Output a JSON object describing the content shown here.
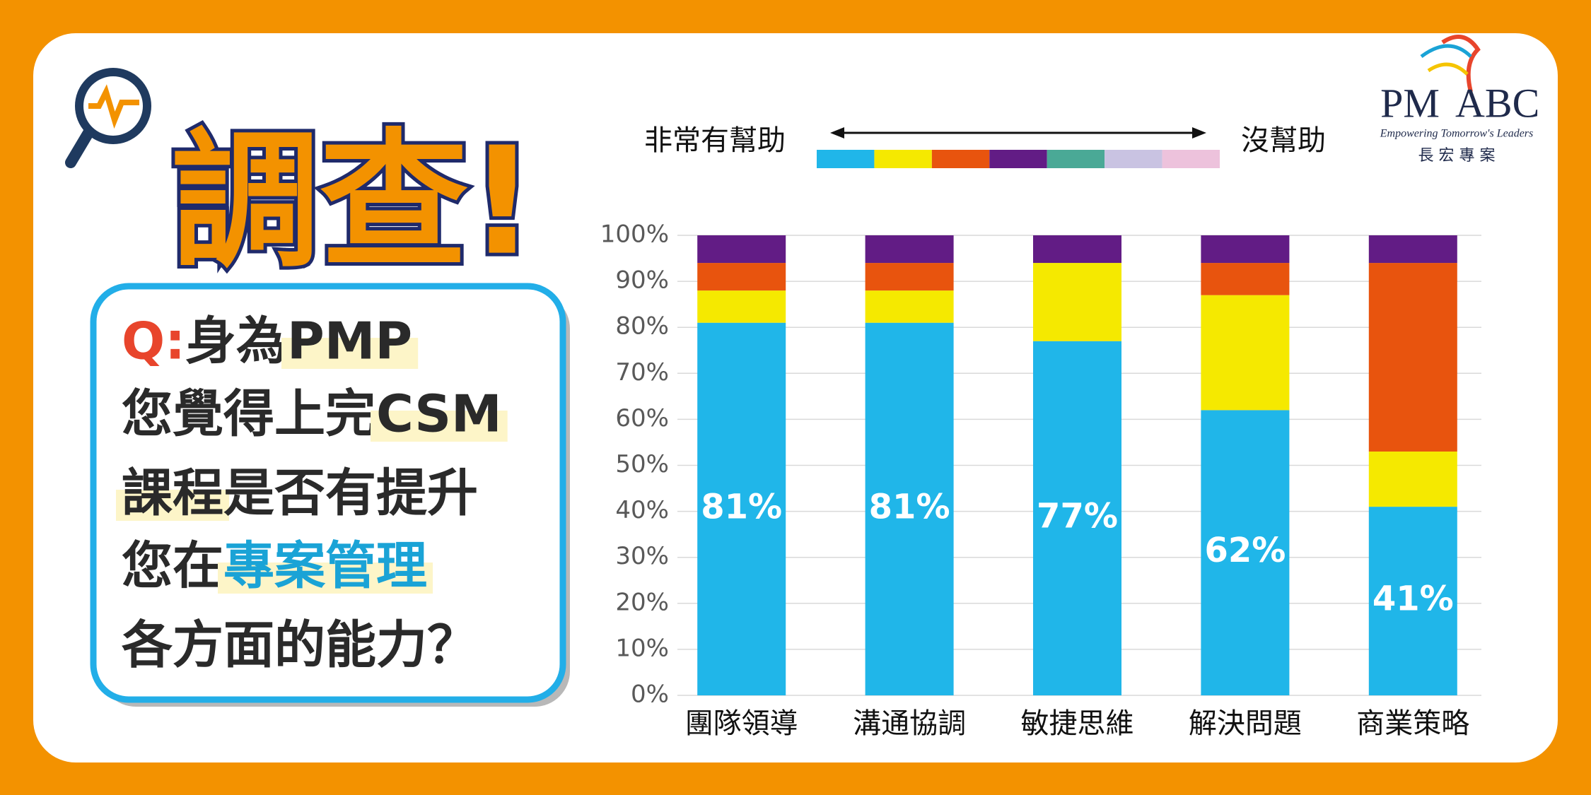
{
  "poster": {
    "title": "調查!",
    "question": [
      [
        {
          "text": "Q:",
          "color": "#e8452c"
        },
        {
          "text": "身為"
        },
        {
          "text": "PMP",
          "highlight": true
        }
      ],
      [
        {
          "text": "您覺得上完"
        },
        {
          "text": "CSM",
          "highlight": true
        }
      ],
      [
        {
          "text": "課程",
          "highlight": true
        },
        {
          "text": "是否有提升"
        }
      ],
      [
        {
          "text": "您在"
        },
        {
          "text": "專案管理",
          "color": "#1aa3d6",
          "highlight": true
        }
      ],
      [
        {
          "text": "各方面的能力？"
        }
      ]
    ],
    "logo": {
      "mark_left": "PM",
      "mark_right": "ABC",
      "tagline": "Empowering Tomorrow's Leaders",
      "name": "長 宏 專 案"
    }
  },
  "chart_data": {
    "type": "stacked_bar",
    "legend_labels": [
      "非常有幫助",
      "沒幫助"
    ],
    "categories": [
      "團隊領導",
      "溝通協調",
      "敏捷思維",
      "解決問題",
      "商業策略"
    ],
    "series": [
      {
        "color": "#20b6e9",
        "values": [
          81,
          81,
          77,
          62,
          41
        ],
        "value_labels": [
          "81%",
          "81%",
          "77%",
          "62%",
          "41%"
        ]
      },
      {
        "color": "#f5e900",
        "values": [
          7,
          7,
          17,
          25,
          12
        ]
      },
      {
        "color": "#e8540e",
        "values": [
          6,
          6,
          0,
          7,
          41
        ]
      },
      {
        "color": "#621c85",
        "values": [
          6,
          6,
          6,
          6,
          6
        ]
      },
      {
        "color": "#4aa996",
        "values": [
          0,
          0,
          0,
          0,
          0
        ]
      },
      {
        "color": "#c9c3e2",
        "values": [
          0,
          0,
          0,
          0,
          0
        ]
      },
      {
        "color": "#edc2dc",
        "values": [
          0,
          0,
          0,
          0,
          0
        ]
      }
    ],
    "ylim": [
      0,
      100
    ],
    "yticks": [
      {
        "value": 0,
        "label": "0%"
      },
      {
        "value": 10,
        "label": "10%"
      },
      {
        "value": 20,
        "label": "20%"
      },
      {
        "value": 30,
        "label": "30%"
      },
      {
        "value": 40,
        "label": "40%"
      },
      {
        "value": 50,
        "label": "50%"
      },
      {
        "value": 60,
        "label": "60%"
      },
      {
        "value": 70,
        "label": "70%"
      },
      {
        "value": 80,
        "label": "80%"
      },
      {
        "value": 90,
        "label": "90%"
      },
      {
        "value": 100,
        "label": "100%"
      }
    ],
    "grid": true
  }
}
